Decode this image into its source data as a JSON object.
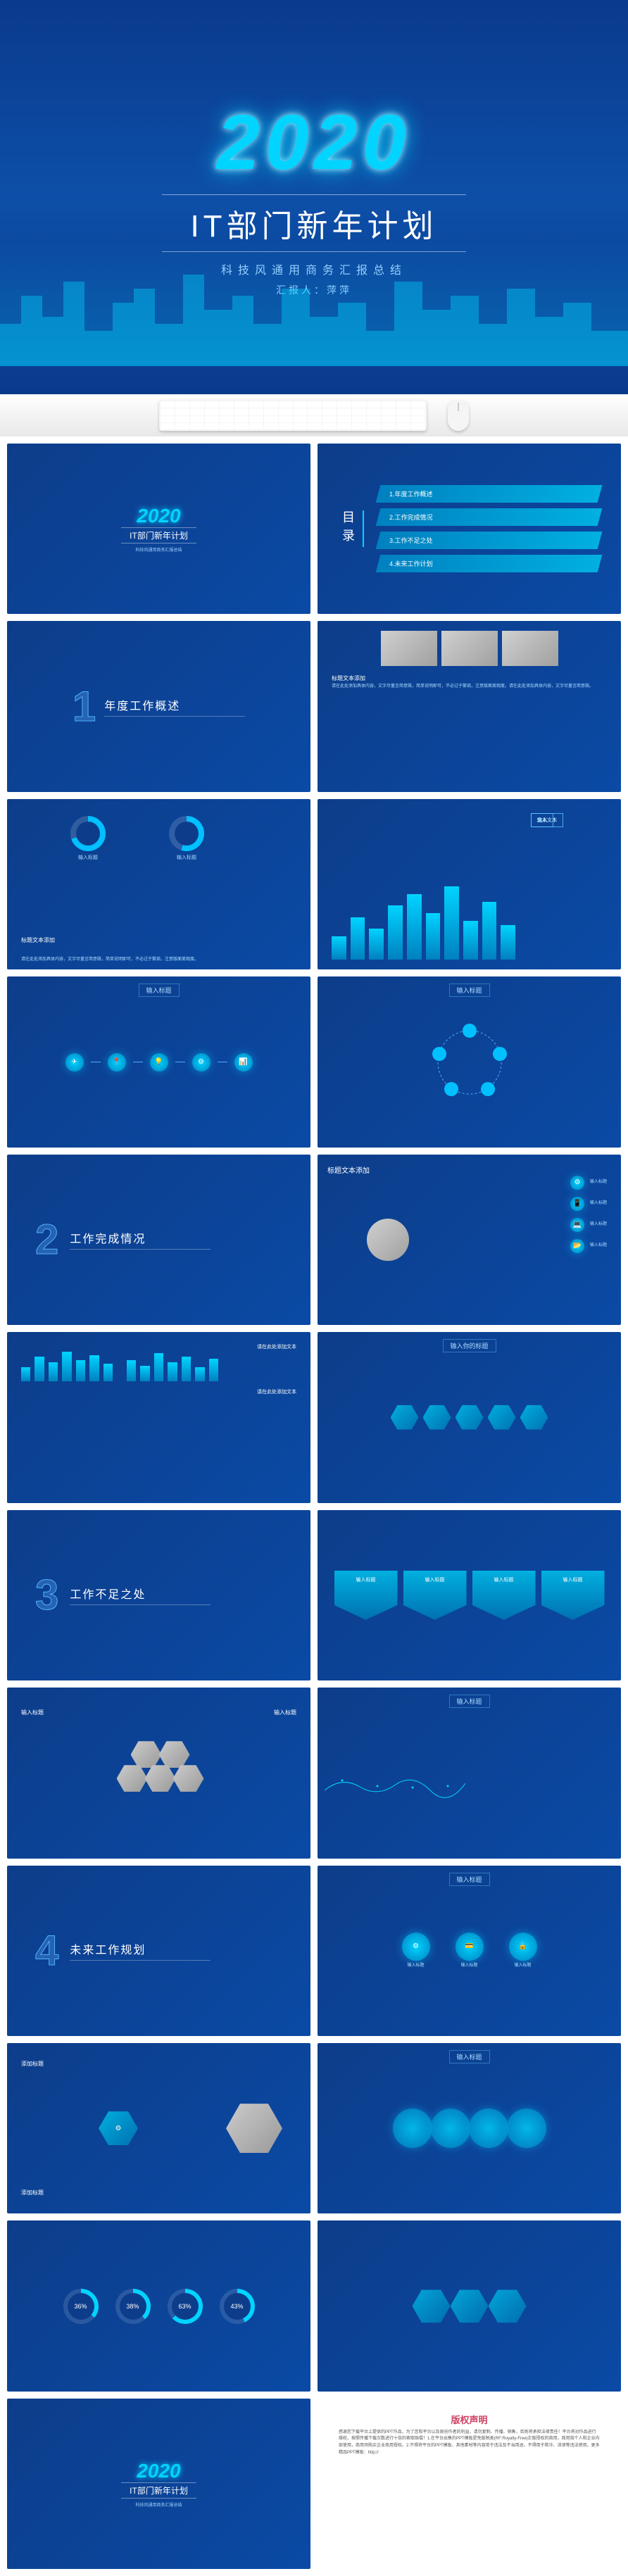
{
  "hero": {
    "year": "2020",
    "title": "IT部门新年计划",
    "subtitle": "科技风通用商务汇报总结",
    "reporter": "汇报人：萍萍"
  },
  "toc": {
    "label": "目录",
    "items": [
      "1.年度工作概述",
      "2.工作完成情况",
      "3.工作不足之处",
      "4.未来工作计划"
    ]
  },
  "sections": {
    "s1": {
      "num": "1",
      "title": "年度工作概述"
    },
    "s2": {
      "num": "2",
      "title": "工作完成情况"
    },
    "s3": {
      "num": "3",
      "title": "工作不足之处"
    },
    "s4": {
      "num": "4",
      "title": "未来工作规划"
    }
  },
  "labels": {
    "input_title": "输入标题",
    "title_add": "标题文本添加",
    "input_team": "输入你的团队",
    "add_title": "添加标题",
    "click_add": "请在此处添加文本"
  },
  "slide3": {
    "title": "年度工作概述",
    "body": "请在此处添加具体内容，文字尽量言简意赅，简单说明即可，不必过于繁琐，注意版面美观度。请在此处添加具体内容，文字尽量言简意赅。"
  },
  "slide4": {
    "title": "标题文本添加",
    "p1_title": "输入标题",
    "p2_title": "输入标题"
  },
  "slide5": {
    "title": "标题文本添加",
    "body": "请在此处添加具体内容，文字尽量言简意赅，简单说明即可，不必过于繁琐，注意版面美观度。"
  },
  "slide6": {
    "bars": [
      30,
      55,
      40,
      70,
      85,
      60,
      95,
      50,
      75,
      45
    ],
    "boxes": [
      "输入文本",
      "文本",
      "输入文本",
      "文本",
      "输入文本",
      "文本"
    ]
  },
  "slide9": {
    "title": "标题文本添加",
    "items": [
      "输入标题",
      "输入标题",
      "输入标题",
      "输入标题"
    ]
  },
  "slide10": {
    "bars1": [
      40,
      70,
      55,
      85,
      60,
      75,
      50
    ],
    "bars2": [
      60,
      45,
      80,
      55,
      70,
      40,
      65
    ],
    "t1": "请在此处添加文本",
    "t2": "请在此处添加文本"
  },
  "slide11": {
    "title": "输入你的标题"
  },
  "slide12": {
    "banners": [
      "输入标题",
      "输入标题",
      "输入标题",
      "输入标题"
    ]
  },
  "slide13": {
    "l1": "输入标题",
    "l2": "输入标题"
  },
  "slide15": {
    "items": [
      "输入标题",
      "输入标题",
      "输入标题"
    ]
  },
  "slide16": {
    "l1": "添加标题",
    "l2": "添加标题"
  },
  "slide17": {
    "pcts": [
      36,
      38,
      63,
      43
    ]
  },
  "copyright": {
    "title": "版权声明",
    "body": "感谢您下载平台上提供的PPT作品，为了您和平台以及原创作者的利益，请勿复制、传播、销售，否则将承担法律责任！平台将对作品进行维权，按照传播下载次数进行十倍的索取赔偿！1.在平台出售的PPT模板是免版税类(RF:Royalty-Free)正版授权的商用，商用指个人和企业内部使用，商用须购买企业商用授权。2.不得将平台的PPT模板、其他素材等内容用于违法及不当用途，不得用于欺诈、诽谤等违法使用。更多精品PPT模板：http://"
  },
  "colors": {
    "bg_primary": "#0d3d8a",
    "bg_secondary": "#0a4aa5",
    "accent": "#00d4ff",
    "accent2": "#0080c0",
    "text_light": "#ffffff",
    "text_dim": "#aaddff"
  }
}
